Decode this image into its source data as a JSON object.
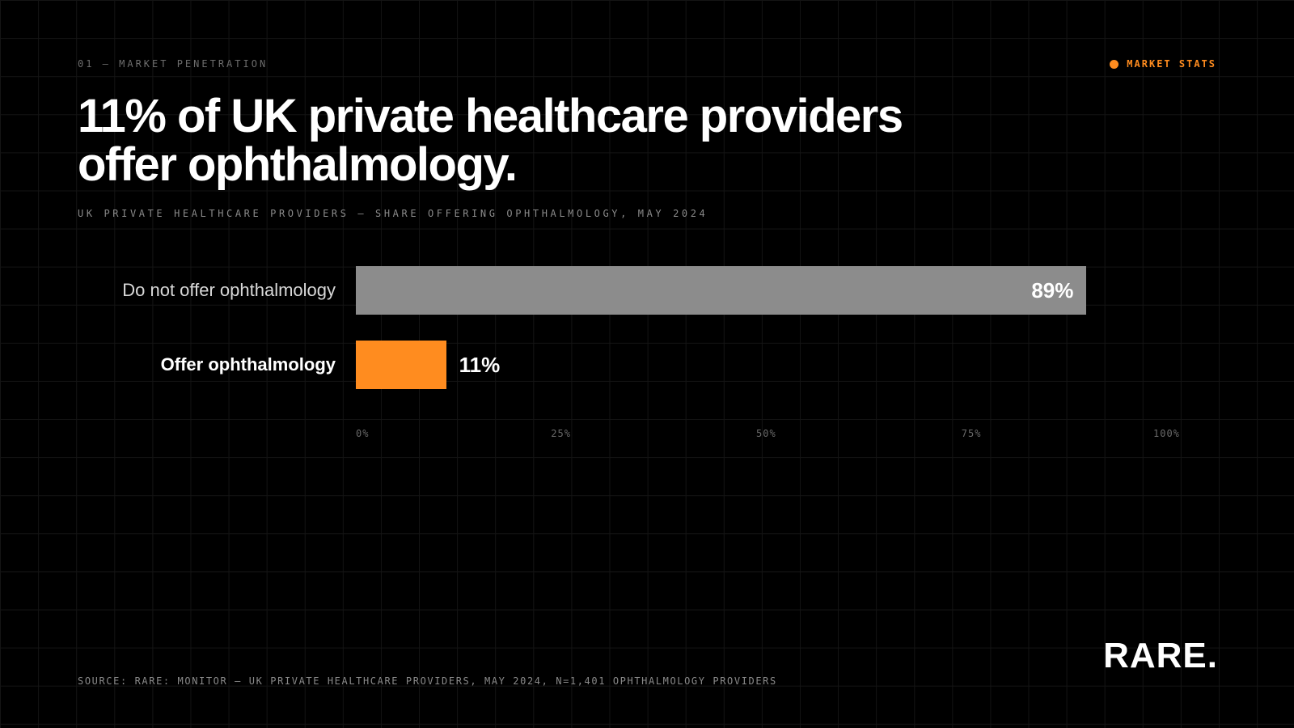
{
  "kicker": "01 — MARKET PENETRATION",
  "tag": {
    "label": "MARKET STATS",
    "color": "#ff8c1f"
  },
  "headline": {
    "line1": "11% of UK private healthcare providers",
    "line2": "offer ophthalmology."
  },
  "subtitle": "UK PRIVATE HEALTHCARE PROVIDERS — SHARE OFFERING OPHTHALMOLOGY, MAY 2024",
  "source": "SOURCE: RARE: MONITOR — UK PRIVATE HEALTHCARE PROVIDERS, MAY 2024, N=1,401 OPHTHALMOLOGY PROVIDERS",
  "logo": "RARE.",
  "chart_data": {
    "type": "bar",
    "orientation": "horizontal",
    "categories": [
      "Do not offer ophthalmology",
      "Offer ophthalmology"
    ],
    "values": [
      89,
      11
    ],
    "value_labels": [
      "89%",
      "11%"
    ],
    "colors": [
      "#8c8c8c",
      "#ff8c1f"
    ],
    "label_colors": [
      "#d9d9d9",
      "#ffffff"
    ],
    "xlim": [
      0,
      100
    ],
    "ticks": [
      0,
      25,
      50,
      75,
      100
    ],
    "tick_labels": [
      "0%",
      "25%",
      "50%",
      "75%",
      "100%"
    ],
    "grid": false,
    "legend": "none"
  }
}
